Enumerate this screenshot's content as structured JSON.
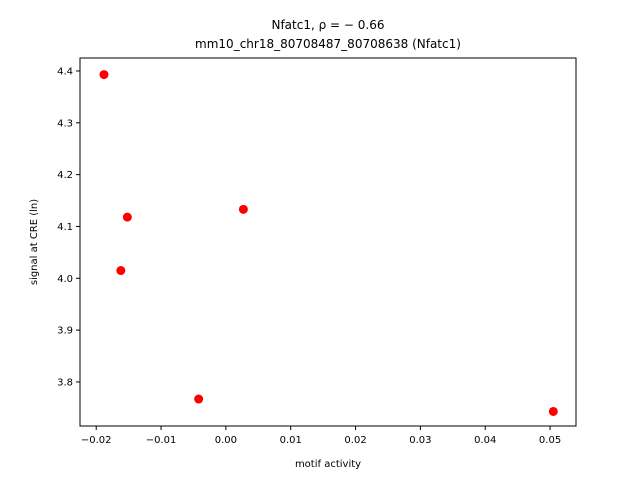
{
  "chart_data": {
    "type": "scatter",
    "title_line1": "Nfatc1, ρ = − 0.66",
    "title_line2": "mm10_chr18_80708487_80708638 (Nfatc1)",
    "xlabel": "motif activity",
    "ylabel": "signal at CRE (ln)",
    "xlim": [
      -0.0225,
      0.054
    ],
    "ylim": [
      3.715,
      4.425
    ],
    "xticks": [
      -0.02,
      -0.01,
      0.0,
      0.01,
      0.02,
      0.03,
      0.04,
      0.05
    ],
    "xtick_labels": [
      "−0.02",
      "−0.01",
      "0.00",
      "0.01",
      "0.02",
      "0.03",
      "0.04",
      "0.05"
    ],
    "yticks": [
      3.8,
      3.9,
      4.0,
      4.1,
      4.2,
      4.3,
      4.4
    ],
    "ytick_labels": [
      "3.8",
      "3.9",
      "4.0",
      "4.1",
      "4.2",
      "4.3",
      "4.4"
    ],
    "grid": false,
    "marker_color": "#ff0000",
    "points": [
      {
        "x": -0.0188,
        "y": 4.393
      },
      {
        "x": -0.0152,
        "y": 4.118
      },
      {
        "x": -0.0162,
        "y": 4.015
      },
      {
        "x": 0.0027,
        "y": 4.133
      },
      {
        "x": -0.0042,
        "y": 3.767
      },
      {
        "x": 0.0505,
        "y": 3.743
      }
    ]
  }
}
